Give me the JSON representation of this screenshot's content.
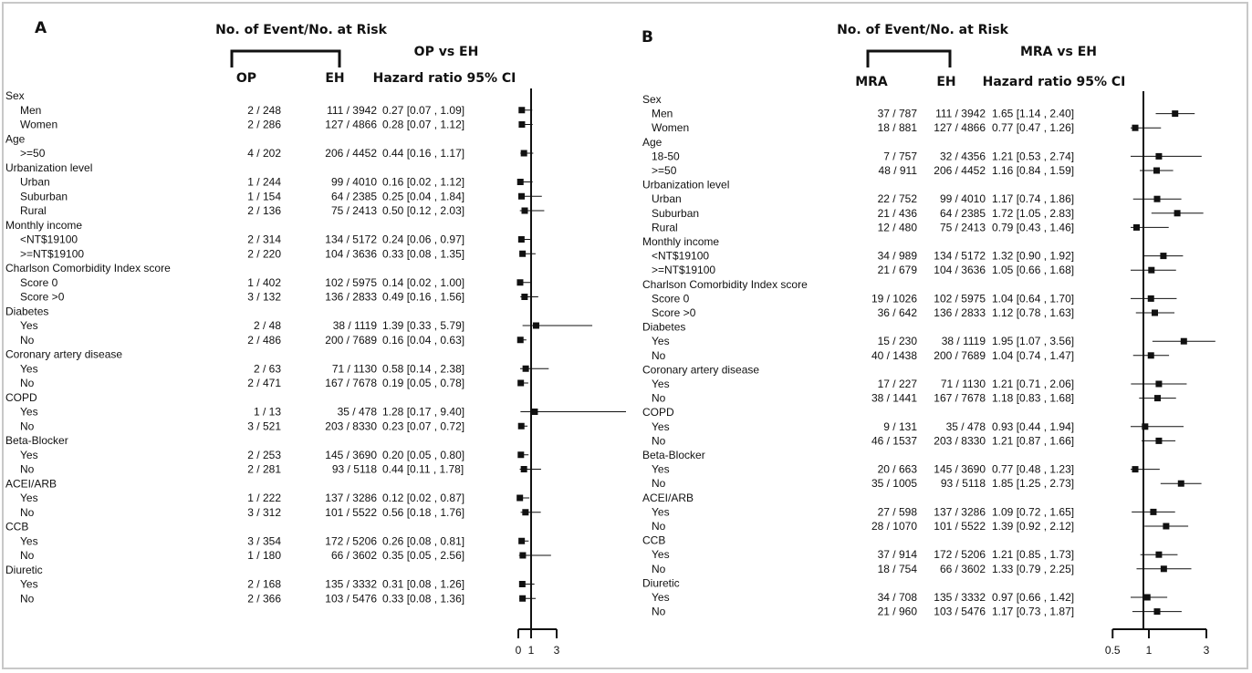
{
  "panels": [
    {
      "label": "A",
      "header": "No. of Event/No. at Risk",
      "col1": "OP",
      "col2": "EH",
      "compare": "OP vs EH",
      "hr_header": "Hazard ratio 95% CI",
      "axis_ticks": [
        0,
        1,
        3
      ],
      "axis_tick_labels": [
        "0",
        "1",
        "3"
      ],
      "rows": [
        {
          "t": "h",
          "label": "Sex"
        },
        {
          "t": "d",
          "label": "Men",
          "c1": "2 / 248",
          "c2": "111 / 3942",
          "hr": 0.27,
          "lo": 0.07,
          "hi": 1.09,
          "ci": "0.27 [0.07 , 1.09]"
        },
        {
          "t": "d",
          "label": "Women",
          "c1": "2 / 286",
          "c2": "127 / 4866",
          "hr": 0.28,
          "lo": 0.07,
          "hi": 1.12,
          "ci": "0.28 [0.07 , 1.12]"
        },
        {
          "t": "h",
          "label": "Age"
        },
        {
          "t": "d",
          "label": ">=50",
          "c1": "4 / 202",
          "c2": "206 / 4452",
          "hr": 0.44,
          "lo": 0.16,
          "hi": 1.17,
          "ci": "0.44 [0.16 , 1.17]"
        },
        {
          "t": "h",
          "label": "Urbanization level"
        },
        {
          "t": "d",
          "label": "Urban",
          "c1": "1 / 244",
          "c2": "99 / 4010",
          "hr": 0.16,
          "lo": 0.02,
          "hi": 1.12,
          "ci": "0.16 [0.02 , 1.12]"
        },
        {
          "t": "d",
          "label": "Suburban",
          "c1": "1 / 154",
          "c2": "64 / 2385",
          "hr": 0.25,
          "lo": 0.04,
          "hi": 1.84,
          "ci": "0.25 [0.04 , 1.84]"
        },
        {
          "t": "d",
          "label": "Rural",
          "c1": "2 / 136",
          "c2": "75 / 2413",
          "hr": 0.5,
          "lo": 0.12,
          "hi": 2.03,
          "ci": "0.50 [0.12 , 2.03]"
        },
        {
          "t": "h",
          "label": "Monthly income"
        },
        {
          "t": "d",
          "label": "<NT$19100",
          "c1": "2 / 314",
          "c2": "134 / 5172",
          "hr": 0.24,
          "lo": 0.06,
          "hi": 0.97,
          "ci": "0.24 [0.06 , 0.97]"
        },
        {
          "t": "d",
          "label": ">=NT$19100",
          "c1": "2 / 220",
          "c2": "104 / 3636",
          "hr": 0.33,
          "lo": 0.08,
          "hi": 1.35,
          "ci": "0.33 [0.08 , 1.35]"
        },
        {
          "t": "h",
          "label": "Charlson Comorbidity Index score"
        },
        {
          "t": "d",
          "label": "Score 0",
          "c1": "1 / 402",
          "c2": "102 / 5975",
          "hr": 0.14,
          "lo": 0.02,
          "hi": 1.0,
          "ci": "0.14 [0.02 , 1.00]"
        },
        {
          "t": "d",
          "label": "Score >0",
          "c1": "3 / 132",
          "c2": "136 / 2833",
          "hr": 0.49,
          "lo": 0.16,
          "hi": 1.56,
          "ci": "0.49 [0.16 , 1.56]"
        },
        {
          "t": "h",
          "label": "Diabetes"
        },
        {
          "t": "d",
          "label": "Yes",
          "c1": "2 / 48",
          "c2": "38 / 1119",
          "hr": 1.39,
          "lo": 0.33,
          "hi": 5.79,
          "ci": "1.39 [0.33 , 5.79]"
        },
        {
          "t": "d",
          "label": "No",
          "c1": "2 / 486",
          "c2": "200 / 7689",
          "hr": 0.16,
          "lo": 0.04,
          "hi": 0.63,
          "ci": "0.16 [0.04 , 0.63]"
        },
        {
          "t": "h",
          "label": "Coronary artery disease"
        },
        {
          "t": "d",
          "label": "Yes",
          "c1": "2 / 63",
          "c2": "71 / 1130",
          "hr": 0.58,
          "lo": 0.14,
          "hi": 2.38,
          "ci": "0.58 [0.14 , 2.38]"
        },
        {
          "t": "d",
          "label": "No",
          "c1": "2 / 471",
          "c2": "167 / 7678",
          "hr": 0.19,
          "lo": 0.05,
          "hi": 0.78,
          "ci": "0.19 [0.05 , 0.78]"
        },
        {
          "t": "h",
          "label": "COPD"
        },
        {
          "t": "d",
          "label": "Yes",
          "c1": "1 / 13",
          "c2": "35 / 478",
          "hr": 1.28,
          "lo": 0.17,
          "hi": 9.4,
          "ci": "1.28 [0.17 , 9.40]"
        },
        {
          "t": "d",
          "label": "No",
          "c1": "3 / 521",
          "c2": "203 / 8330",
          "hr": 0.23,
          "lo": 0.07,
          "hi": 0.72,
          "ci": "0.23 [0.07 , 0.72]"
        },
        {
          "t": "h",
          "label": "Beta-Blocker"
        },
        {
          "t": "d",
          "label": "Yes",
          "c1": "2 / 253",
          "c2": "145 / 3690",
          "hr": 0.2,
          "lo": 0.05,
          "hi": 0.8,
          "ci": "0.20 [0.05 , 0.80]"
        },
        {
          "t": "d",
          "label": "No",
          "c1": "2 / 281",
          "c2": "93 / 5118",
          "hr": 0.44,
          "lo": 0.11,
          "hi": 1.78,
          "ci": "0.44 [0.11 , 1.78]"
        },
        {
          "t": "h",
          "label": "ACEI/ARB"
        },
        {
          "t": "d",
          "label": "Yes",
          "c1": "1 / 222",
          "c2": "137 / 3286",
          "hr": 0.12,
          "lo": 0.02,
          "hi": 0.87,
          "ci": "0.12 [0.02 , 0.87]"
        },
        {
          "t": "d",
          "label": "No",
          "c1": "3 / 312",
          "c2": "101 / 5522",
          "hr": 0.56,
          "lo": 0.18,
          "hi": 1.76,
          "ci": "0.56 [0.18 , 1.76]"
        },
        {
          "t": "h",
          "label": "CCB"
        },
        {
          "t": "d",
          "label": "Yes",
          "c1": "3 / 354",
          "c2": "172 / 5206",
          "hr": 0.26,
          "lo": 0.08,
          "hi": 0.81,
          "ci": "0.26 [0.08 , 0.81]"
        },
        {
          "t": "d",
          "label": "No",
          "c1": "1 / 180",
          "c2": "66 / 3602",
          "hr": 0.35,
          "lo": 0.05,
          "hi": 2.56,
          "ci": "0.35 [0.05 , 2.56]"
        },
        {
          "t": "h",
          "label": "Diuretic"
        },
        {
          "t": "d",
          "label": "Yes",
          "c1": "2 / 168",
          "c2": "135 / 3332",
          "hr": 0.31,
          "lo": 0.08,
          "hi": 1.26,
          "ci": "0.31 [0.08 , 1.26]"
        },
        {
          "t": "d",
          "label": "No",
          "c1": "2 / 366",
          "c2": "103 / 5476",
          "hr": 0.33,
          "lo": 0.08,
          "hi": 1.36,
          "ci": "0.33 [0.08 , 1.36]"
        }
      ]
    },
    {
      "label": "B",
      "header": "No. of Event/No. at Risk",
      "col1": "MRA",
      "col2": "EH",
      "compare": "MRA vs EH",
      "hr_header": "Hazard ratio 95% CI",
      "axis_ticks": [
        0.5,
        1,
        3
      ],
      "axis_tick_labels": [
        "0.5",
        "1",
        "3"
      ],
      "rows": [
        {
          "t": "h",
          "label": "Sex"
        },
        {
          "t": "d",
          "label": "Men",
          "c1": "37 / 787",
          "c2": "111 / 3942",
          "hr": 1.65,
          "lo": 1.14,
          "hi": 2.4,
          "ci": "1.65 [1.14 , 2.40]"
        },
        {
          "t": "d",
          "label": "Women",
          "c1": "18 / 881",
          "c2": "127 / 4866",
          "hr": 0.77,
          "lo": 0.47,
          "hi": 1.26,
          "ci": "0.77 [0.47 , 1.26]"
        },
        {
          "t": "h",
          "label": "Age"
        },
        {
          "t": "d",
          "label": "18-50",
          "c1": "7 / 757",
          "c2": "32 / 4356",
          "hr": 1.21,
          "lo": 0.53,
          "hi": 2.74,
          "ci": "1.21 [0.53 , 2.74]"
        },
        {
          "t": "d",
          "label": ">=50",
          "c1": "48 / 911",
          "c2": "206 / 4452",
          "hr": 1.16,
          "lo": 0.84,
          "hi": 1.59,
          "ci": "1.16 [0.84 , 1.59]"
        },
        {
          "t": "h",
          "label": "Urbanization level"
        },
        {
          "t": "d",
          "label": "Urban",
          "c1": "22 / 752",
          "c2": "99 / 4010",
          "hr": 1.17,
          "lo": 0.74,
          "hi": 1.86,
          "ci": "1.17 [0.74 , 1.86]"
        },
        {
          "t": "d",
          "label": "Suburban",
          "c1": "21 / 436",
          "c2": "64 / 2385",
          "hr": 1.72,
          "lo": 1.05,
          "hi": 2.83,
          "ci": "1.72 [1.05 , 2.83]"
        },
        {
          "t": "d",
          "label": "Rural",
          "c1": "12 / 480",
          "c2": "75 / 2413",
          "hr": 0.79,
          "lo": 0.43,
          "hi": 1.46,
          "ci": "0.79 [0.43 , 1.46]"
        },
        {
          "t": "h",
          "label": "Monthly income"
        },
        {
          "t": "d",
          "label": "<NT$19100",
          "c1": "34 / 989",
          "c2": "134 / 5172",
          "hr": 1.32,
          "lo": 0.9,
          "hi": 1.92,
          "ci": "1.32 [0.90 , 1.92]"
        },
        {
          "t": "d",
          "label": ">=NT$19100",
          "c1": "21 / 679",
          "c2": "104 / 3636",
          "hr": 1.05,
          "lo": 0.66,
          "hi": 1.68,
          "ci": "1.05 [0.66 , 1.68]"
        },
        {
          "t": "h",
          "label": "Charlson Comorbidity Index score"
        },
        {
          "t": "d",
          "label": "Score 0",
          "c1": "19 / 1026",
          "c2": "102 / 5975",
          "hr": 1.04,
          "lo": 0.64,
          "hi": 1.7,
          "ci": "1.04 [0.64 , 1.70]"
        },
        {
          "t": "d",
          "label": "Score >0",
          "c1": "36 / 642",
          "c2": "136 / 2833",
          "hr": 1.12,
          "lo": 0.78,
          "hi": 1.63,
          "ci": "1.12 [0.78 , 1.63]"
        },
        {
          "t": "h",
          "label": "Diabetes"
        },
        {
          "t": "d",
          "label": "Yes",
          "c1": "15 / 230",
          "c2": "38 / 1119",
          "hr": 1.95,
          "lo": 1.07,
          "hi": 3.56,
          "ci": "1.95 [1.07 , 3.56]"
        },
        {
          "t": "d",
          "label": "No",
          "c1": "40 / 1438",
          "c2": "200 / 7689",
          "hr": 1.04,
          "lo": 0.74,
          "hi": 1.47,
          "ci": "1.04 [0.74 , 1.47]"
        },
        {
          "t": "h",
          "label": "Coronary artery disease"
        },
        {
          "t": "d",
          "label": "Yes",
          "c1": "17 / 227",
          "c2": "71 / 1130",
          "hr": 1.21,
          "lo": 0.71,
          "hi": 2.06,
          "ci": "1.21 [0.71 , 2.06]"
        },
        {
          "t": "d",
          "label": "No",
          "c1": "38 / 1441",
          "c2": "167 / 7678",
          "hr": 1.18,
          "lo": 0.83,
          "hi": 1.68,
          "ci": "1.18 [0.83 , 1.68]"
        },
        {
          "t": "h",
          "label": "COPD"
        },
        {
          "t": "d",
          "label": "Yes",
          "c1": "9 / 131",
          "c2": "35 / 478",
          "hr": 0.93,
          "lo": 0.44,
          "hi": 1.94,
          "ci": "0.93 [0.44 , 1.94]"
        },
        {
          "t": "d",
          "label": "No",
          "c1": "46 / 1537",
          "c2": "203 / 8330",
          "hr": 1.21,
          "lo": 0.87,
          "hi": 1.66,
          "ci": "1.21 [0.87 , 1.66]"
        },
        {
          "t": "h",
          "label": "Beta-Blocker"
        },
        {
          "t": "d",
          "label": "Yes",
          "c1": "20 / 663",
          "c2": "145 / 3690",
          "hr": 0.77,
          "lo": 0.48,
          "hi": 1.23,
          "ci": "0.77 [0.48 , 1.23]"
        },
        {
          "t": "d",
          "label": "No",
          "c1": "35 / 1005",
          "c2": "93 / 5118",
          "hr": 1.85,
          "lo": 1.25,
          "hi": 2.73,
          "ci": "1.85 [1.25 , 2.73]"
        },
        {
          "t": "h",
          "label": "ACEI/ARB"
        },
        {
          "t": "d",
          "label": "Yes",
          "c1": "27 / 598",
          "c2": "137 / 3286",
          "hr": 1.09,
          "lo": 0.72,
          "hi": 1.65,
          "ci": "1.09 [0.72 , 1.65]"
        },
        {
          "t": "d",
          "label": "No",
          "c1": "28 / 1070",
          "c2": "101 / 5522",
          "hr": 1.39,
          "lo": 0.92,
          "hi": 2.12,
          "ci": "1.39 [0.92 , 2.12]"
        },
        {
          "t": "h",
          "label": "CCB"
        },
        {
          "t": "d",
          "label": "Yes",
          "c1": "37 / 914",
          "c2": "172 / 5206",
          "hr": 1.21,
          "lo": 0.85,
          "hi": 1.73,
          "ci": "1.21 [0.85 , 1.73]"
        },
        {
          "t": "d",
          "label": "No",
          "c1": "18 / 754",
          "c2": "66 / 3602",
          "hr": 1.33,
          "lo": 0.79,
          "hi": 2.25,
          "ci": "1.33 [0.79 , 2.25]"
        },
        {
          "t": "h",
          "label": "Diuretic"
        },
        {
          "t": "d",
          "label": "Yes",
          "c1": "34 / 708",
          "c2": "135 / 3332",
          "hr": 0.97,
          "lo": 0.66,
          "hi": 1.42,
          "ci": "0.97 [0.66 , 1.42]"
        },
        {
          "t": "d",
          "label": "No",
          "c1": "21 / 960",
          "c2": "103 / 5476",
          "hr": 1.17,
          "lo": 0.73,
          "hi": 1.87,
          "ci": "1.17 [0.73 , 1.87]"
        }
      ]
    }
  ],
  "chart_data": [
    {
      "type": "scatter",
      "subtype": "forest",
      "panel": "A",
      "xlabel": "",
      "ylabel": "",
      "axis_ticks": [
        0,
        1,
        3
      ],
      "reference_line": 1,
      "series": [
        {
          "values_source": "panels.0.rows"
        }
      ]
    },
    {
      "type": "scatter",
      "subtype": "forest",
      "panel": "B",
      "xlabel": "",
      "ylabel": "",
      "axis_ticks": [
        0.5,
        1,
        3
      ],
      "reference_line": 1,
      "series": [
        {
          "values_source": "panels.1.rows"
        }
      ]
    }
  ]
}
